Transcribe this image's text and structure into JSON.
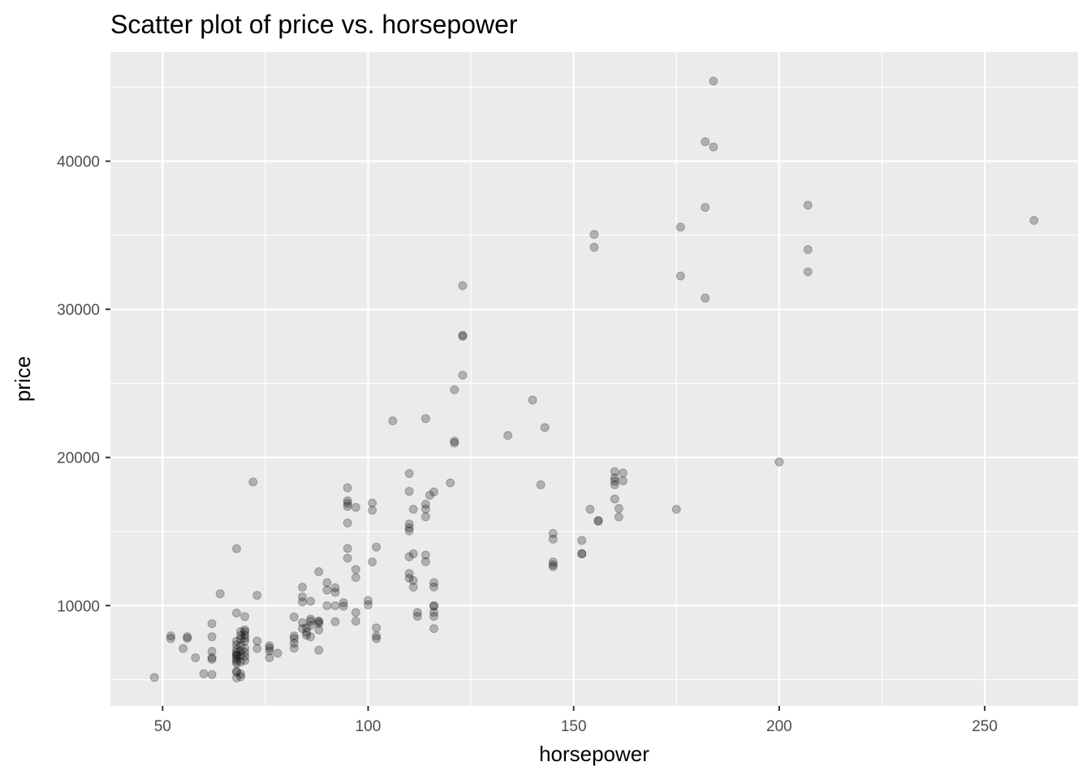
{
  "chart_data": {
    "type": "scatter",
    "title": "Scatter plot of price vs. horsepower",
    "xlabel": "horsepower",
    "ylabel": "price",
    "xlim": [
      37.3,
      272.7
    ],
    "ylim": [
      3225,
      47373
    ],
    "x_ticks": [
      50,
      100,
      150,
      200,
      250
    ],
    "y_ticks": [
      10000,
      20000,
      30000,
      40000
    ],
    "grid": true,
    "legend": "none",
    "point_alpha": 0.25,
    "colors": {
      "panel": "#ebebeb",
      "grid": "#ffffff",
      "point": "#000000",
      "tick_text": "#4d4d4d"
    },
    "points": [
      [
        48,
        5151
      ],
      [
        52,
        7957
      ],
      [
        52,
        7775
      ],
      [
        55,
        7099
      ],
      [
        56,
        7898
      ],
      [
        56,
        7788
      ],
      [
        58,
        6479
      ],
      [
        60,
        5399
      ],
      [
        62,
        5348
      ],
      [
        62,
        6377
      ],
      [
        62,
        6488
      ],
      [
        62,
        6918
      ],
      [
        62,
        7898
      ],
      [
        62,
        8778
      ],
      [
        64,
        10795
      ],
      [
        68,
        5118
      ],
      [
        68,
        5499
      ],
      [
        68,
        5572
      ],
      [
        68,
        6095
      ],
      [
        68,
        6229
      ],
      [
        68,
        6377
      ],
      [
        68,
        6529
      ],
      [
        68,
        6669
      ],
      [
        68,
        6692
      ],
      [
        68,
        6849
      ],
      [
        68,
        7053
      ],
      [
        68,
        7349
      ],
      [
        68,
        7603
      ],
      [
        68,
        9495
      ],
      [
        68,
        13845
      ],
      [
        69,
        5195
      ],
      [
        69,
        5389
      ],
      [
        69,
        6189
      ],
      [
        69,
        6649
      ],
      [
        69,
        6938
      ],
      [
        69,
        7295
      ],
      [
        69,
        7738
      ],
      [
        69,
        7975
      ],
      [
        69,
        8249
      ],
      [
        70,
        6295
      ],
      [
        70,
        6575
      ],
      [
        70,
        6855
      ],
      [
        70,
        7129
      ],
      [
        70,
        7609
      ],
      [
        70,
        7799
      ],
      [
        70,
        8013
      ],
      [
        70,
        8238
      ],
      [
        70,
        8358
      ],
      [
        70,
        9258
      ],
      [
        72,
        18344
      ],
      [
        73,
        7099
      ],
      [
        73,
        7609
      ],
      [
        73,
        10698
      ],
      [
        76,
        6488
      ],
      [
        76,
        6938
      ],
      [
        76,
        7126
      ],
      [
        76,
        7295
      ],
      [
        78,
        6785
      ],
      [
        82,
        7129
      ],
      [
        82,
        7463
      ],
      [
        82,
        7775
      ],
      [
        82,
        7957
      ],
      [
        82,
        9233
      ],
      [
        84,
        8449
      ],
      [
        84,
        8845
      ],
      [
        84,
        10245
      ],
      [
        84,
        10595
      ],
      [
        84,
        11245
      ],
      [
        85,
        7999
      ],
      [
        85,
        8195
      ],
      [
        85,
        8499
      ],
      [
        86,
        7898
      ],
      [
        86,
        8649
      ],
      [
        86,
        8948
      ],
      [
        86,
        9095
      ],
      [
        86,
        10295
      ],
      [
        88,
        6989
      ],
      [
        88,
        8358
      ],
      [
        88,
        8778
      ],
      [
        88,
        8921
      ],
      [
        88,
        8948
      ],
      [
        88,
        12290
      ],
      [
        90,
        9988
      ],
      [
        90,
        11048
      ],
      [
        90,
        11549
      ],
      [
        92,
        8916
      ],
      [
        92,
        9989
      ],
      [
        92,
        10898
      ],
      [
        92,
        11199
      ],
      [
        94,
        9960
      ],
      [
        94,
        10198
      ],
      [
        95,
        13200
      ],
      [
        95,
        13860
      ],
      [
        95,
        15580
      ],
      [
        95,
        16695
      ],
      [
        95,
        16900
      ],
      [
        95,
        17075
      ],
      [
        95,
        17950
      ],
      [
        97,
        8948
      ],
      [
        97,
        9538
      ],
      [
        97,
        11900
      ],
      [
        97,
        12440
      ],
      [
        97,
        16630
      ],
      [
        100,
        10048
      ],
      [
        100,
        10345
      ],
      [
        101,
        12945
      ],
      [
        101,
        16430
      ],
      [
        101,
        16925
      ],
      [
        102,
        7775
      ],
      [
        102,
        7957
      ],
      [
        102,
        8495
      ],
      [
        102,
        13950
      ],
      [
        106,
        22470
      ],
      [
        110,
        11850
      ],
      [
        110,
        12170
      ],
      [
        110,
        13295
      ],
      [
        110,
        15040
      ],
      [
        110,
        15250
      ],
      [
        110,
        15510
      ],
      [
        110,
        17710
      ],
      [
        110,
        18920
      ],
      [
        111,
        11245
      ],
      [
        111,
        11694
      ],
      [
        111,
        13499
      ],
      [
        111,
        16500
      ],
      [
        112,
        9279
      ],
      [
        112,
        9538
      ],
      [
        114,
        12964
      ],
      [
        114,
        13415
      ],
      [
        114,
        15998
      ],
      [
        114,
        16515
      ],
      [
        114,
        16845
      ],
      [
        114,
        22625
      ],
      [
        115,
        17450
      ],
      [
        116,
        8449
      ],
      [
        116,
        9279
      ],
      [
        116,
        9549
      ],
      [
        116,
        9959
      ],
      [
        116,
        9989
      ],
      [
        116,
        11259
      ],
      [
        116,
        11549
      ],
      [
        116,
        17669
      ],
      [
        120,
        18280
      ],
      [
        121,
        20970
      ],
      [
        121,
        21105
      ],
      [
        121,
        24565
      ],
      [
        123,
        25552
      ],
      [
        123,
        28176
      ],
      [
        123,
        28248
      ],
      [
        123,
        31600
      ],
      [
        134,
        21485
      ],
      [
        140,
        23875
      ],
      [
        142,
        18150
      ],
      [
        143,
        22018
      ],
      [
        145,
        12629
      ],
      [
        145,
        12764
      ],
      [
        145,
        12945
      ],
      [
        145,
        14489
      ],
      [
        145,
        14869
      ],
      [
        152,
        13499
      ],
      [
        152,
        13499
      ],
      [
        152,
        14399
      ],
      [
        154,
        16503
      ],
      [
        155,
        34184
      ],
      [
        155,
        35056
      ],
      [
        156,
        15690
      ],
      [
        156,
        15750
      ],
      [
        160,
        17199
      ],
      [
        160,
        18150
      ],
      [
        160,
        18399
      ],
      [
        160,
        18620
      ],
      [
        160,
        19045
      ],
      [
        161,
        15985
      ],
      [
        161,
        16558
      ],
      [
        162,
        18420
      ],
      [
        162,
        18950
      ],
      [
        175,
        16500
      ],
      [
        176,
        32250
      ],
      [
        176,
        35550
      ],
      [
        182,
        30760
      ],
      [
        182,
        36880
      ],
      [
        182,
        41315
      ],
      [
        184,
        40960
      ],
      [
        184,
        45400
      ],
      [
        200,
        19699
      ],
      [
        207,
        32528
      ],
      [
        207,
        34028
      ],
      [
        207,
        37028
      ],
      [
        262,
        36000
      ]
    ]
  }
}
